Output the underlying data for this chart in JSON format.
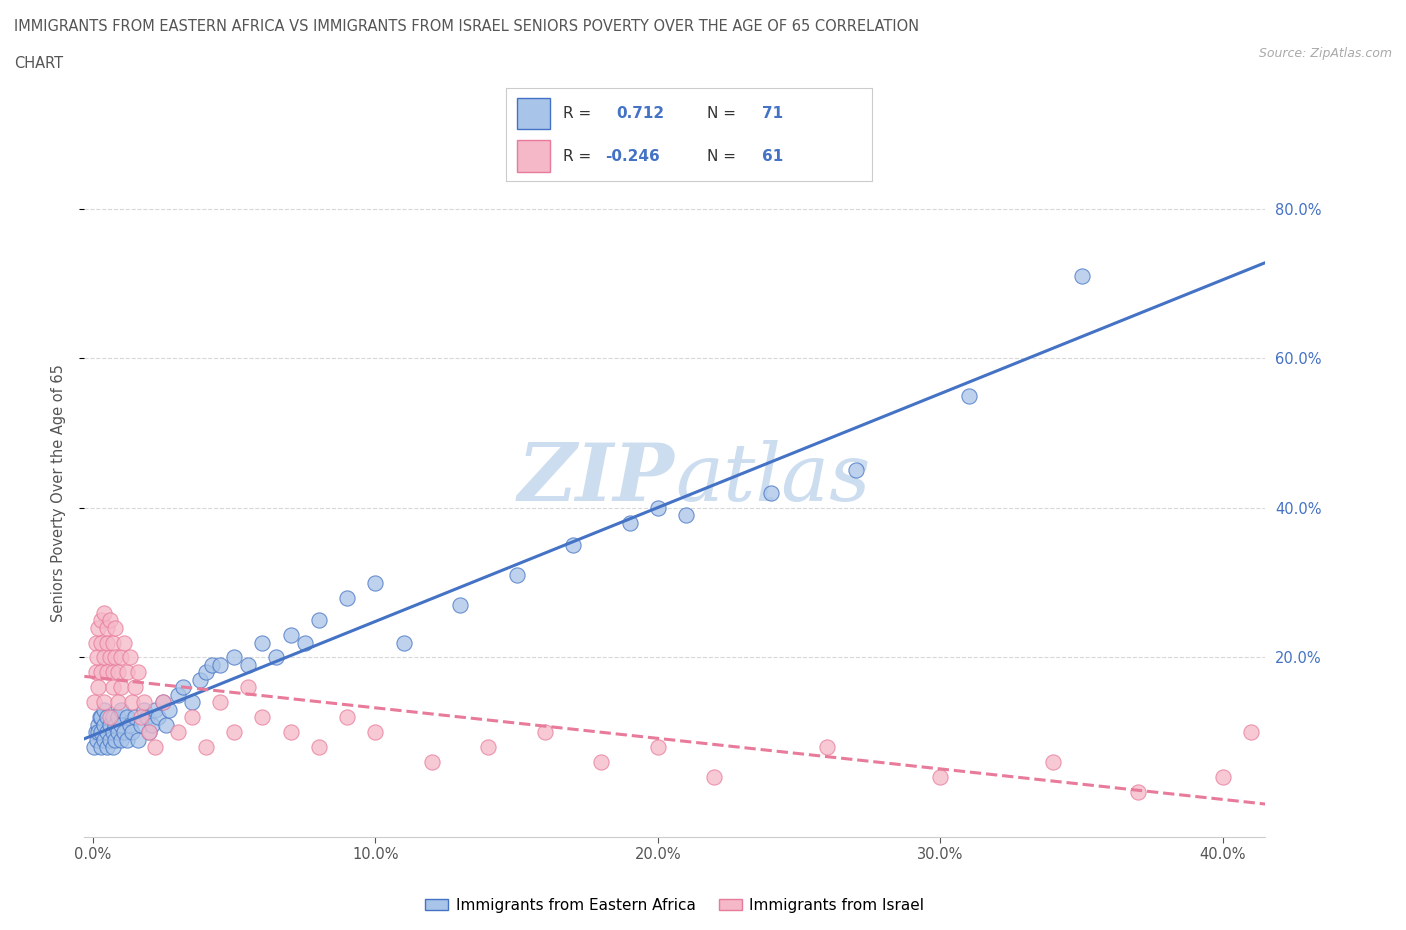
{
  "title_line1": "IMMIGRANTS FROM EASTERN AFRICA VS IMMIGRANTS FROM ISRAEL SENIORS POVERTY OVER THE AGE OF 65 CORRELATION",
  "title_line2": "CHART",
  "source_text": "Source: ZipAtlas.com",
  "ylabel": "Seniors Poverty Over the Age of 65",
  "x_tick_labels": [
    "0.0%",
    "10.0%",
    "20.0%",
    "30.0%",
    "40.0%"
  ],
  "x_tick_values": [
    0.0,
    0.1,
    0.2,
    0.3,
    0.4
  ],
  "y_tick_labels_right": [
    "80.0%",
    "60.0%",
    "40.0%",
    "20.0%"
  ],
  "y_tick_values": [
    0.8,
    0.6,
    0.4,
    0.2
  ],
  "xlim": [
    -0.003,
    0.415
  ],
  "ylim": [
    -0.04,
    0.88
  ],
  "legend_labels": [
    "Immigrants from Eastern Africa",
    "Immigrants from Israel"
  ],
  "R_eastern": "0.712",
  "N_eastern": "71",
  "R_israel": "-0.246",
  "N_israel": "61",
  "color_eastern": "#a8c4e8",
  "color_israel": "#f5b8c8",
  "line_color_eastern": "#4472c4",
  "line_color_israel": "#e87a9a",
  "watermark_color": "#cdddf0",
  "background_color": "#ffffff",
  "grid_color": "#d8d8d8",
  "right_label_color": "#4472c4",
  "title_color": "#555555",
  "eastern_x": [
    0.0005,
    0.001,
    0.0015,
    0.002,
    0.002,
    0.0025,
    0.003,
    0.003,
    0.003,
    0.004,
    0.004,
    0.004,
    0.005,
    0.005,
    0.005,
    0.006,
    0.006,
    0.007,
    0.007,
    0.007,
    0.008,
    0.008,
    0.009,
    0.009,
    0.01,
    0.01,
    0.01,
    0.011,
    0.012,
    0.012,
    0.013,
    0.014,
    0.015,
    0.016,
    0.017,
    0.018,
    0.019,
    0.02,
    0.021,
    0.022,
    0.023,
    0.025,
    0.026,
    0.027,
    0.03,
    0.032,
    0.035,
    0.038,
    0.04,
    0.042,
    0.045,
    0.05,
    0.055,
    0.06,
    0.065,
    0.07,
    0.075,
    0.08,
    0.09,
    0.1,
    0.11,
    0.13,
    0.15,
    0.17,
    0.19,
    0.2,
    0.21,
    0.24,
    0.27,
    0.31,
    0.35
  ],
  "eastern_y": [
    0.08,
    0.1,
    0.09,
    0.11,
    0.1,
    0.12,
    0.1,
    0.12,
    0.08,
    0.11,
    0.09,
    0.13,
    0.1,
    0.12,
    0.08,
    0.11,
    0.09,
    0.1,
    0.12,
    0.08,
    0.11,
    0.09,
    0.1,
    0.12,
    0.09,
    0.11,
    0.13,
    0.1,
    0.12,
    0.09,
    0.11,
    0.1,
    0.12,
    0.09,
    0.11,
    0.13,
    0.12,
    0.1,
    0.11,
    0.13,
    0.12,
    0.14,
    0.11,
    0.13,
    0.15,
    0.16,
    0.14,
    0.17,
    0.18,
    0.19,
    0.19,
    0.2,
    0.19,
    0.22,
    0.2,
    0.23,
    0.22,
    0.25,
    0.28,
    0.3,
    0.22,
    0.27,
    0.31,
    0.35,
    0.38,
    0.4,
    0.39,
    0.42,
    0.45,
    0.55,
    0.71
  ],
  "israel_x": [
    0.0005,
    0.001,
    0.001,
    0.0015,
    0.002,
    0.002,
    0.003,
    0.003,
    0.003,
    0.004,
    0.004,
    0.004,
    0.005,
    0.005,
    0.005,
    0.006,
    0.006,
    0.006,
    0.007,
    0.007,
    0.007,
    0.008,
    0.008,
    0.009,
    0.009,
    0.01,
    0.01,
    0.011,
    0.012,
    0.013,
    0.014,
    0.015,
    0.016,
    0.017,
    0.018,
    0.02,
    0.022,
    0.025,
    0.03,
    0.035,
    0.04,
    0.045,
    0.05,
    0.055,
    0.06,
    0.07,
    0.08,
    0.09,
    0.1,
    0.12,
    0.14,
    0.16,
    0.18,
    0.2,
    0.22,
    0.26,
    0.3,
    0.34,
    0.37,
    0.4,
    0.41
  ],
  "israel_y": [
    0.14,
    0.22,
    0.18,
    0.2,
    0.24,
    0.16,
    0.25,
    0.18,
    0.22,
    0.2,
    0.26,
    0.14,
    0.22,
    0.18,
    0.24,
    0.2,
    0.25,
    0.12,
    0.18,
    0.22,
    0.16,
    0.2,
    0.24,
    0.18,
    0.14,
    0.2,
    0.16,
    0.22,
    0.18,
    0.2,
    0.14,
    0.16,
    0.18,
    0.12,
    0.14,
    0.1,
    0.08,
    0.14,
    0.1,
    0.12,
    0.08,
    0.14,
    0.1,
    0.16,
    0.12,
    0.1,
    0.08,
    0.12,
    0.1,
    0.06,
    0.08,
    0.1,
    0.06,
    0.08,
    0.04,
    0.08,
    0.04,
    0.06,
    0.02,
    0.04,
    0.1
  ]
}
